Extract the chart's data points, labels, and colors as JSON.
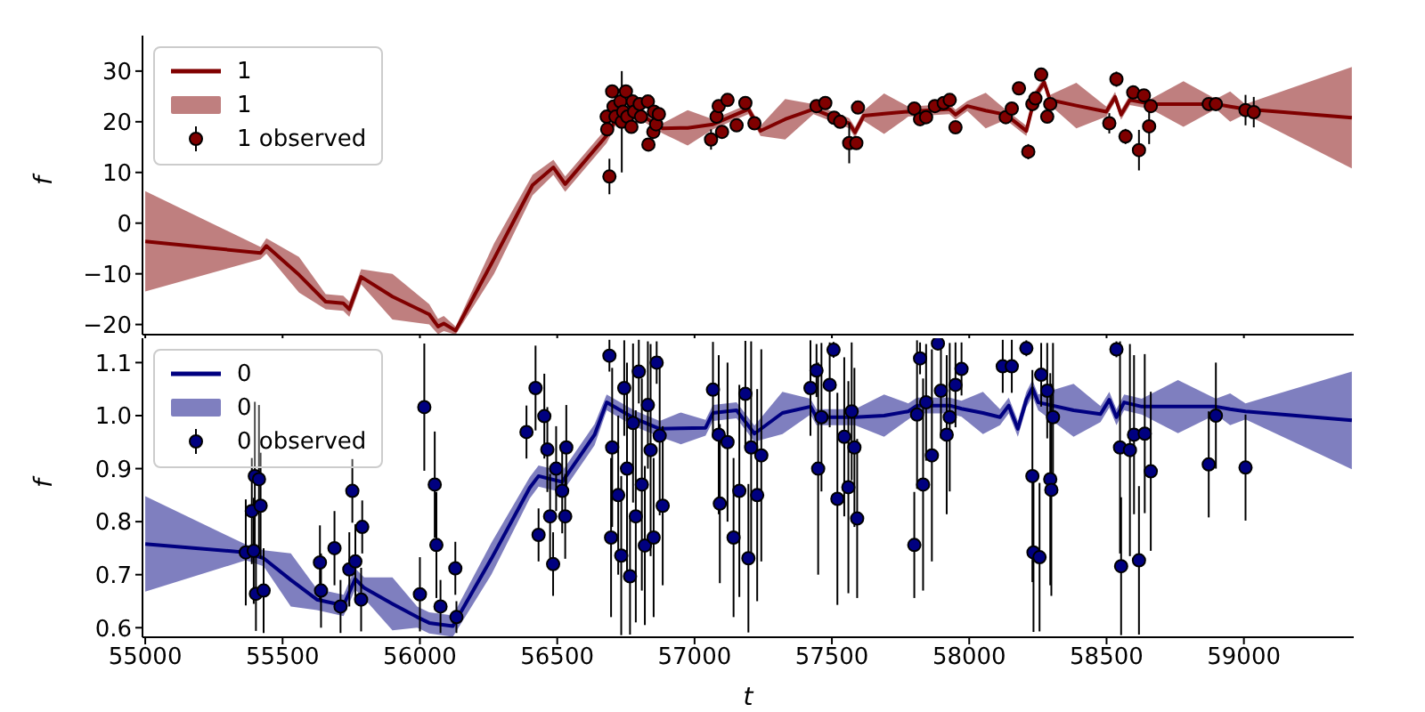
{
  "chart_data": [
    {
      "type": "line",
      "ylabel": "f",
      "xlim": [
        54990,
        59400
      ],
      "xticks": [
        55000,
        55500,
        56000,
        56500,
        57000,
        57500,
        58000,
        58500,
        59000
      ],
      "ylim": [
        -22,
        37
      ],
      "yticks": [
        {
          "value": -20,
          "label": "−20"
        },
        {
          "value": -10,
          "label": "−10"
        },
        0,
        10,
        20,
        30
      ],
      "tick_labels": "y",
      "legend": "top left",
      "series": [
        {
          "name": "1",
          "color": "#800000",
          "x": [
            55000,
            55420,
            55441,
            55560,
            55657,
            55721,
            55743,
            55786,
            55900,
            56034,
            56066,
            56087,
            56130,
            56270,
            56410,
            56486,
            56529,
            56680,
            56720,
            56800,
            56884,
            56975,
            57067,
            57196,
            57240,
            57330,
            57433,
            57563,
            57584,
            57616,
            57690,
            57778,
            57928,
            57950,
            57993,
            58060,
            58133,
            58187,
            58208,
            58240,
            58273,
            58294,
            58390,
            58499,
            58531,
            58553,
            58585,
            58661,
            58780,
            58898,
            58950,
            59005,
            59393
          ],
          "values": [
            -3.6,
            -5.9,
            -4.5,
            -10.2,
            -15.5,
            -15.8,
            -17,
            -10.6,
            -14.5,
            -18,
            -20.4,
            -19.8,
            -21.2,
            -7,
            7.5,
            11,
            7.7,
            17.3,
            21,
            21.5,
            18.7,
            18.8,
            19.5,
            22.5,
            18.2,
            20.5,
            22.5,
            19.7,
            17.9,
            21.2,
            21.6,
            22,
            22.5,
            21.4,
            23.1,
            22.2,
            21.4,
            19.1,
            18.2,
            25.1,
            27.8,
            24.3,
            23.2,
            22,
            24.9,
            21.4,
            24.3,
            23.5,
            23.5,
            23.5,
            23,
            22.5,
            20.8
          ],
          "lower": [
            -13.5,
            -7.1,
            -6,
            -13.7,
            -17,
            -17.3,
            -18.5,
            -12.1,
            -19,
            -20,
            -21.9,
            -21.3,
            -22,
            -10,
            5.5,
            9.5,
            6.2,
            15.8,
            20,
            20.5,
            17.7,
            15.3,
            18.5,
            21.5,
            17.2,
            16.5,
            21.5,
            18.7,
            16.9,
            20.2,
            17.6,
            21,
            21.5,
            20.4,
            22.1,
            18.7,
            20.4,
            18.1,
            17.2,
            24.1,
            26.8,
            23.3,
            18.7,
            21,
            23.9,
            20.4,
            23.3,
            22.5,
            19,
            22.5,
            20,
            21.5,
            10.8
          ],
          "upper": [
            6.3,
            -4.7,
            -3,
            -6.7,
            -14,
            -14.3,
            -15.5,
            -9.1,
            -10,
            -16,
            -18.9,
            -18.3,
            -20.4,
            -4,
            9.5,
            12.5,
            9.2,
            18.8,
            22,
            22.5,
            19.7,
            22.3,
            20.5,
            23.5,
            19.2,
            24.5,
            23.5,
            20.7,
            18.9,
            22.2,
            25.6,
            23,
            23.5,
            22.4,
            24.1,
            25.7,
            22.4,
            20.1,
            19.2,
            26.1,
            28.8,
            25.3,
            27.7,
            23,
            25.9,
            22.4,
            25.3,
            24.5,
            28,
            24.5,
            26,
            23.5,
            30.8
          ]
        },
        {
          "name": "1 observed",
          "type": "scatter",
          "color": "#800000",
          "marker": "circle",
          "x": [
            56680,
            56682,
            56690,
            56700,
            56705,
            56712,
            56730,
            56735,
            56740,
            56750,
            56755,
            56770,
            56775,
            56780,
            56800,
            56805,
            56830,
            56832,
            56850,
            56852,
            56860,
            56870,
            57060,
            57080,
            57088,
            57100,
            57120,
            57153,
            57185,
            57218,
            57444,
            57476,
            57508,
            57530,
            57563,
            57589,
            57595,
            57800,
            57821,
            57843,
            57875,
            57907,
            57929,
            57950,
            58133,
            58155,
            58181,
            58215,
            58230,
            58241,
            58262,
            58284,
            58295,
            58510,
            58536,
            58569,
            58597,
            58618,
            58636,
            58655,
            58661,
            58872,
            58898,
            59006,
            59036
          ],
          "values": [
            21,
            18.5,
            9.2,
            26,
            23,
            21,
            24,
            20,
            22,
            26,
            21,
            19,
            24,
            22,
            23.5,
            21,
            24,
            15.5,
            18,
            22,
            19.5,
            21.5,
            16.5,
            21,
            23.1,
            18,
            24.3,
            19.3,
            23.7,
            19.7,
            23.1,
            23.7,
            20.8,
            20,
            15.8,
            15.8,
            22.8,
            22.6,
            20.5,
            20.9,
            23.1,
            23.7,
            24.3,
            18.9,
            20.9,
            22.6,
            26.6,
            14.1,
            23.5,
            24.6,
            29.3,
            21,
            23.5,
            19.7,
            28.4,
            17.1,
            25.8,
            14.4,
            25.2,
            19.1,
            23.1,
            23.5,
            23.5,
            22.3,
            21.9
          ],
          "errors": [
            1,
            1,
            3.5,
            1,
            1,
            1,
            1,
            10,
            1,
            1,
            1,
            1,
            1,
            1,
            1,
            1,
            1,
            1,
            1,
            1,
            1,
            1,
            2,
            1,
            1,
            1,
            1,
            1,
            1,
            1,
            1,
            1,
            1,
            1,
            4,
            1,
            1,
            1,
            1,
            1,
            1,
            1,
            1,
            1,
            1,
            1,
            1,
            1.5,
            1,
            1,
            1,
            1,
            1,
            2,
            1.5,
            1.5,
            1,
            4,
            1,
            3.5,
            1,
            1,
            1,
            3,
            3
          ]
        }
      ]
    },
    {
      "type": "line",
      "xlabel": "t",
      "ylabel": "f",
      "xlim": [
        54990,
        59400
      ],
      "xticks": [
        55000,
        55500,
        56000,
        56500,
        57000,
        57500,
        58000,
        58500,
        59000
      ],
      "ylim": [
        0.582,
        1.146
      ],
      "yticks": [
        0.6,
        0.7,
        0.8,
        0.9,
        {
          "value": 1,
          "label": "1.0"
        },
        1.1
      ],
      "legend": "top left",
      "series": [
        {
          "name": "0",
          "color": "#000080",
          "x": [
            55000,
            55366,
            55431,
            55530,
            55625,
            55722,
            55764,
            55797,
            55900,
            55990,
            56034,
            56120,
            56260,
            56400,
            56432,
            56518,
            56636,
            56680,
            56780,
            56873,
            56950,
            57040,
            57067,
            57153,
            57218,
            57320,
            57422,
            57444,
            57584,
            57690,
            57778,
            57810,
            57929,
            57972,
            58050,
            58112,
            58144,
            58177,
            58208,
            58230,
            58251,
            58380,
            58478,
            58510,
            58536,
            58564,
            58628,
            58760,
            58898,
            58950,
            59006,
            59393
          ],
          "values": [
            0.758,
            0.742,
            0.731,
            0.69,
            0.653,
            0.642,
            0.692,
            0.675,
            0.645,
            0.62,
            0.609,
            0.603,
            0.73,
            0.864,
            0.886,
            0.875,
            0.964,
            1.025,
            0.995,
            0.975,
            0.976,
            0.977,
            1.005,
            1.01,
            0.966,
            1.005,
            1.017,
            0.997,
            0.997,
            1.0,
            1.008,
            1.019,
            1.019,
            1.013,
            1.005,
            0.997,
            1.019,
            0.975,
            1.03,
            1.052,
            1.025,
            1.01,
            1.003,
            1.03,
            0.997,
            1.025,
            1.017,
            1.017,
            1.017,
            1.012,
            1.008,
            0.991
          ],
          "lower": [
            0.668,
            0.727,
            0.716,
            0.64,
            0.633,
            0.622,
            0.672,
            0.655,
            0.595,
            0.6,
            0.589,
            0.583,
            0.7,
            0.844,
            0.866,
            0.855,
            0.944,
            1.01,
            0.98,
            0.96,
            0.946,
            0.962,
            0.99,
            0.995,
            0.951,
            0.965,
            1.002,
            0.982,
            0.982,
            0.96,
            0.993,
            1.004,
            1.004,
            0.998,
            0.965,
            0.982,
            1.004,
            0.96,
            1.015,
            1.037,
            1.01,
            0.96,
            0.988,
            1.015,
            0.982,
            1.01,
            1.002,
            0.967,
            1.002,
            0.982,
            0.993,
            0.899
          ],
          "upper": [
            0.848,
            0.757,
            0.746,
            0.74,
            0.673,
            0.662,
            0.712,
            0.695,
            0.695,
            0.64,
            0.629,
            0.623,
            0.76,
            0.884,
            0.906,
            0.895,
            0.984,
            1.04,
            1.01,
            0.99,
            1.006,
            0.992,
            1.02,
            1.025,
            0.981,
            1.045,
            1.032,
            1.012,
            1.012,
            1.04,
            1.023,
            1.034,
            1.034,
            1.028,
            1.045,
            1.012,
            1.034,
            0.99,
            1.045,
            1.067,
            1.04,
            1.06,
            1.018,
            1.045,
            1.012,
            1.04,
            1.032,
            1.067,
            1.032,
            1.042,
            1.023,
            1.083
          ]
        },
        {
          "name": "0 observed",
          "type": "scatter",
          "color": "#000080",
          "marker": "circle",
          "x": [
            55366,
            55388,
            55399,
            55414,
            55420,
            55395,
            55403,
            55431,
            55636,
            55640,
            55689,
            55711,
            55754,
            55743,
            55765,
            55786,
            55790,
            56016,
            56000,
            56054,
            56060,
            56075,
            56129,
            56133,
            56388,
            56421,
            56432,
            56453,
            56464,
            56474,
            56485,
            56496,
            56518,
            56533,
            56529,
            56690,
            56700,
            56696,
            56722,
            56733,
            56744,
            56754,
            56765,
            56776,
            56786,
            56797,
            56808,
            56819,
            56830,
            56840,
            56851,
            56862,
            56884,
            56873,
            57067,
            57088,
            57092,
            57120,
            57142,
            57163,
            57185,
            57196,
            57206,
            57228,
            57243,
            57422,
            57444,
            57450,
            57462,
            57492,
            57520,
            57506,
            57545,
            57560,
            57572,
            57582,
            57592,
            57800,
            57810,
            57821,
            57832,
            57843,
            57864,
            57886,
            57897,
            57918,
            57929,
            57950,
            57972,
            58122,
            58155,
            58208,
            58230,
            58234,
            58256,
            58262,
            58284,
            58295,
            58299,
            58305,
            58536,
            58549,
            58553,
            58585,
            58600,
            58618,
            58639,
            58661,
            58872,
            58898,
            59006
          ],
          "values": [
            0.742,
            0.82,
            0.886,
            0.88,
            0.83,
            0.745,
            0.664,
            0.67,
            0.723,
            0.67,
            0.75,
            0.64,
            0.858,
            0.71,
            0.725,
            0.653,
            0.79,
            1.016,
            0.663,
            0.87,
            0.756,
            0.64,
            0.712,
            0.62,
            0.969,
            1.052,
            0.775,
            0.999,
            0.936,
            0.81,
            0.72,
            0.9,
            0.858,
            0.94,
            0.81,
            1.113,
            0.94,
            0.77,
            0.85,
            0.736,
            1.052,
            0.9,
            0.697,
            0.986,
            0.81,
            1.083,
            0.87,
            0.755,
            1.02,
            0.935,
            0.77,
            1.1,
            0.83,
            0.962,
            1.049,
            0.964,
            0.834,
            0.95,
            0.77,
            0.858,
            1.041,
            0.731,
            0.94,
            0.85,
            0.925,
            1.052,
            1.085,
            0.9,
            0.997,
            1.058,
            0.843,
            1.124,
            0.96,
            0.865,
            1.008,
            0.94,
            0.806,
            0.756,
            1.002,
            1.108,
            0.87,
            1.025,
            0.925,
            1.136,
            1.047,
            0.964,
            0.997,
            1.058,
            1.088,
            1.093,
            1.093,
            1.127,
            0.886,
            0.742,
            0.733,
            1.077,
            1.047,
            0.88,
            0.86,
            0.997,
            1.125,
            0.94,
            0.716,
            0.935,
            0.964,
            0.727,
            0.966,
            0.895,
            0.908,
            1.0,
            0.902
          ],
          "errors": [
            0.1,
            0.1,
            0.14,
            0.14,
            0.1,
            0.1,
            0.07,
            0.08,
            0.07,
            0.07,
            0.07,
            0.05,
            0.06,
            0.07,
            0.07,
            0.06,
            0.05,
            0.12,
            0.07,
            0.1,
            0.1,
            0.05,
            0.05,
            0.03,
            0.05,
            0.08,
            0.05,
            0.08,
            0.08,
            0.08,
            0.06,
            0.08,
            0.08,
            0.08,
            0.08,
            0.03,
            0.15,
            0.15,
            0.15,
            0.15,
            0.09,
            0.2,
            0.11,
            0.15,
            0.2,
            0.06,
            0.2,
            0.15,
            0.12,
            0.2,
            0.15,
            0.04,
            0.15,
            0.15,
            0.09,
            0.15,
            0.15,
            0.15,
            0.15,
            0.2,
            0.1,
            0.14,
            0.2,
            0.2,
            0.2,
            0.09,
            0.05,
            0.2,
            0.14,
            0.08,
            0.2,
            0.015,
            0.15,
            0.2,
            0.13,
            0.15,
            0.15,
            0.1,
            0.14,
            0.03,
            0.2,
            0.11,
            0.2,
            0.005,
            0.09,
            0.15,
            0.14,
            0.08,
            0.05,
            0.05,
            0.05,
            0.015,
            0.2,
            0.15,
            0.14,
            0.06,
            0.09,
            0.2,
            0.2,
            0.14,
            0.015,
            0.2,
            0.13,
            0.2,
            0.15,
            0.14,
            0.15,
            0.15,
            0.1,
            0.1,
            0.1
          ]
        }
      ]
    }
  ]
}
